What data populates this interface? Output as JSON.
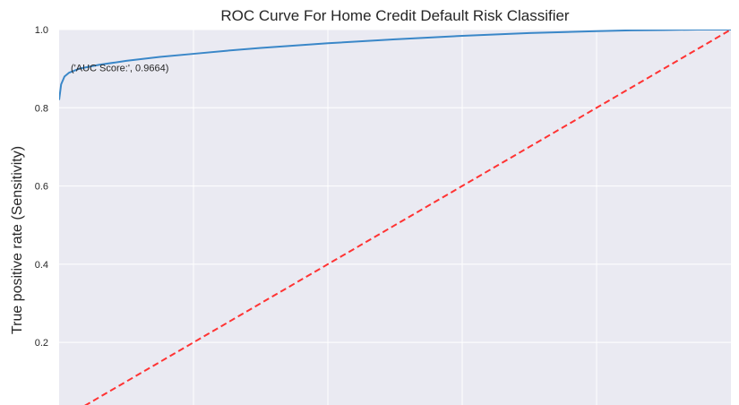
{
  "chart_data": {
    "type": "line",
    "title": "ROC Curve For Home Credit Default Risk Classifier",
    "xlabel": "",
    "ylabel": "True positive rate (Sensitivity)",
    "xlim": [
      0.0,
      1.0
    ],
    "ylim": [
      0.04,
      1.0
    ],
    "yticks": [
      0.2,
      0.4,
      0.6,
      0.8,
      1.0
    ],
    "ytick_labels": [
      "0.2",
      "0.4",
      "0.6",
      "0.8",
      "1.0"
    ],
    "xticks": [
      0.2,
      0.4,
      0.6,
      0.8
    ],
    "grid": true,
    "annotation": {
      "text": "('AUC Score:', 0.9664)",
      "x": 0.02,
      "y": 0.9
    },
    "series": [
      {
        "color": "#3a87c8",
        "style": "solid",
        "x": [
          0.0,
          0.003,
          0.008,
          0.015,
          0.03,
          0.06,
          0.1,
          0.15,
          0.2,
          0.25,
          0.3,
          0.35,
          0.4,
          0.5,
          0.6,
          0.7,
          0.8,
          0.85,
          0.9,
          0.95,
          1.0
        ],
        "y": [
          0.82,
          0.86,
          0.88,
          0.89,
          0.9,
          0.91,
          0.92,
          0.93,
          0.938,
          0.946,
          0.953,
          0.959,
          0.965,
          0.975,
          0.984,
          0.991,
          0.996,
          0.998,
          0.999,
          1.0,
          1.0
        ]
      },
      {
        "color": "#ff3333",
        "style": "dashed",
        "x": [
          0.0,
          1.0
        ],
        "y": [
          0.0,
          1.0
        ]
      }
    ]
  }
}
